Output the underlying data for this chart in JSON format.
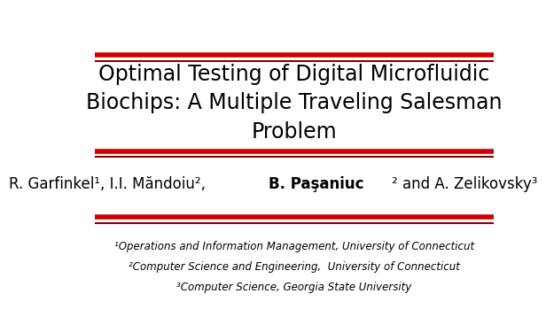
{
  "title_lines": [
    "Optimal Testing of Digital Microfluidic",
    "Biochips: A Multiple Traveling Salesman",
    "Problem"
  ],
  "affiliations": [
    "¹Operations and Information Management, University of Connecticut",
    "²Computer Science and Engineering,  University of Connecticut",
    "³Computer Science, Georgia State University"
  ],
  "bg_color": "#ffffff",
  "title_color": "#000000",
  "author_color": "#000000",
  "affil_color": "#000000",
  "bold_author": "B. Paşaniuc",
  "author_part1": "R. Garfinkel¹, I.I. Măndoiu², ",
  "author_part3": "² and A. Zelikovsky³",
  "line_color_red": "#cc0000",
  "line_color_dark": "#880000",
  "title_fontsize": 17,
  "author_fontsize": 12,
  "affil_fontsize": 8.5
}
